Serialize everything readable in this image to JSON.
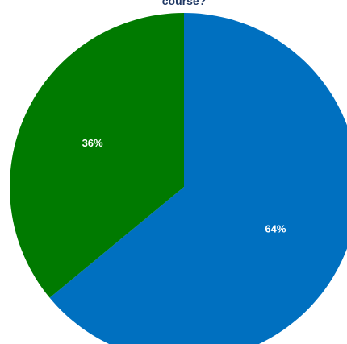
{
  "chart_data": {
    "type": "pie",
    "title": "course?",
    "slices": [
      {
        "label": "64%",
        "value": 64,
        "color": "#0070c0"
      },
      {
        "label": "36%",
        "value": 36,
        "color": "#007a00"
      }
    ],
    "start_angle_deg": 0,
    "direction": "clockwise",
    "legend": "none"
  }
}
